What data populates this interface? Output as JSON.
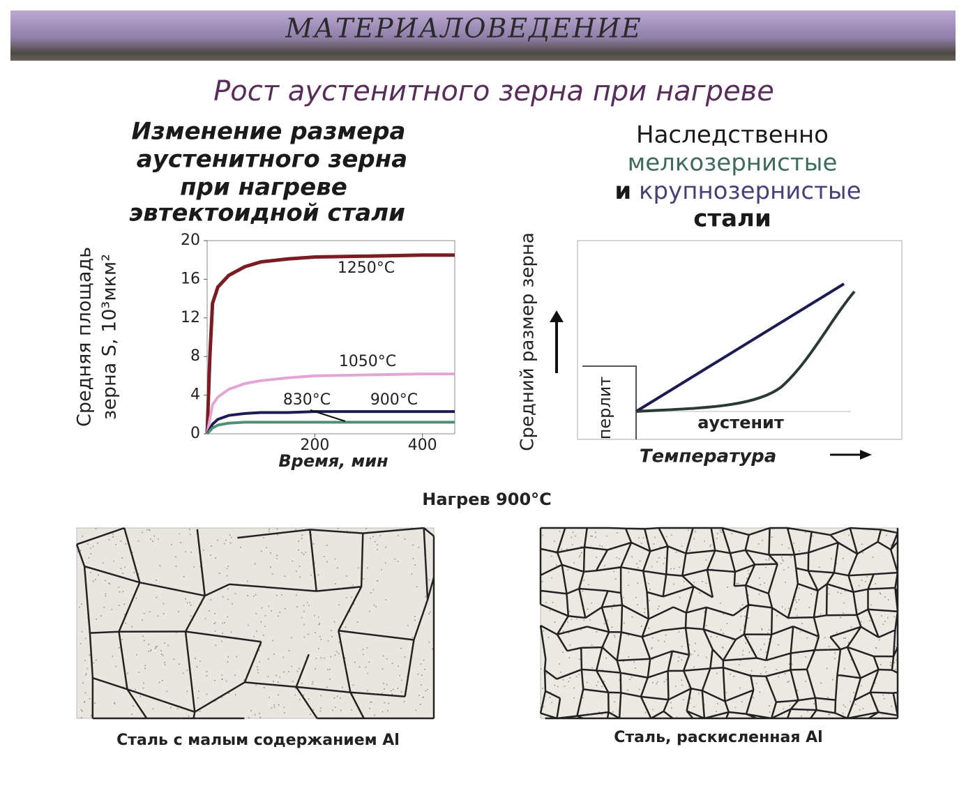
{
  "header": "МАТЕРИАЛОВЕДЕНИЕ",
  "title": "Рост аустенитного зерна при нагреве",
  "left_heading": [
    "Изменение размера",
    "аустенитного зерна",
    "при нагреве",
    "эвтектоидной стали"
  ],
  "right_heading": {
    "line1": "Наследственно",
    "fine": "мелкозернистые",
    "and": "и",
    "coarse": "крупнозернистые",
    "line4": "стали"
  },
  "chart_data": [
    {
      "type": "line",
      "y_label": [
        "Средняя площадь",
        "зерна S, 10³мкм²"
      ],
      "x_label": "Время, мин",
      "x": [
        0,
        5,
        10,
        20,
        40,
        70,
        100,
        150,
        200,
        300,
        400,
        460
      ],
      "xlim": [
        0,
        460
      ],
      "xticks": [
        200,
        400
      ],
      "ylim": [
        0,
        20
      ],
      "yticks": [
        0,
        4,
        8,
        12,
        16,
        20
      ],
      "series": [
        {
          "name": "1250°C",
          "color": "#7a1c22",
          "values": [
            0,
            8,
            13.5,
            15.2,
            16.4,
            17.3,
            17.8,
            18.1,
            18.3,
            18.4,
            18.5,
            18.5
          ]
        },
        {
          "name": "1050°C",
          "color": "#e2a6d6",
          "values": [
            0,
            1.5,
            3,
            3.8,
            4.6,
            5.2,
            5.5,
            5.8,
            6,
            6.1,
            6.2,
            6.2
          ]
        },
        {
          "name": "900°C",
          "color": "#1c1c52",
          "values": [
            0,
            0.5,
            1,
            1.5,
            1.9,
            2.1,
            2.2,
            2.2,
            2.3,
            2.3,
            2.3,
            2.3
          ]
        },
        {
          "name": "830°C",
          "color": "#4f8f72",
          "values": [
            0,
            0.3,
            0.6,
            0.9,
            1.1,
            1.2,
            1.2,
            1.2,
            1.2,
            1.2,
            1.2,
            1.2
          ]
        }
      ]
    },
    {
      "type": "schematic",
      "y_label": "Средний размер зерна",
      "x_label": "Температура",
      "regions": [
        "перлит",
        "аустенит"
      ]
    }
  ],
  "heating": "Нагрев 900°C",
  "captions": [
    "Сталь с малым содержанием Al",
    "Сталь, раскисленная  Al"
  ]
}
